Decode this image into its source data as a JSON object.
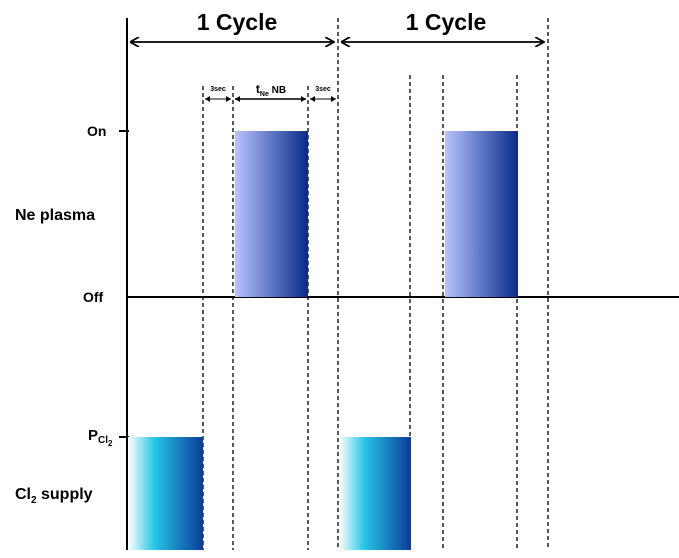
{
  "cycles": [
    {
      "label": "1 Cycle"
    },
    {
      "label": "1 Cycle"
    }
  ],
  "intervals": {
    "purge_before": "3sec",
    "ne_nb_main": "t",
    "ne_nb_sub": "Ne",
    "ne_nb_suffix": " NB",
    "purge_after": "3sec"
  },
  "ne_plasma": {
    "label": "Ne plasma",
    "on_label": "On",
    "off_label": "Off"
  },
  "cl2": {
    "level_main": "P",
    "level_sub": "Cl",
    "level_subsub": "2",
    "supply_main": "Cl",
    "supply_sub": "2",
    "supply_suffix": " supply"
  },
  "colors": {
    "ne_pulse_light": "#b8c4ff",
    "ne_pulse_dark": "#0a2a86",
    "cl_pulse_light": "#ffffff",
    "cl_pulse_mid": "#27c6e6",
    "cl_pulse_dark": "#0a3c98"
  }
}
